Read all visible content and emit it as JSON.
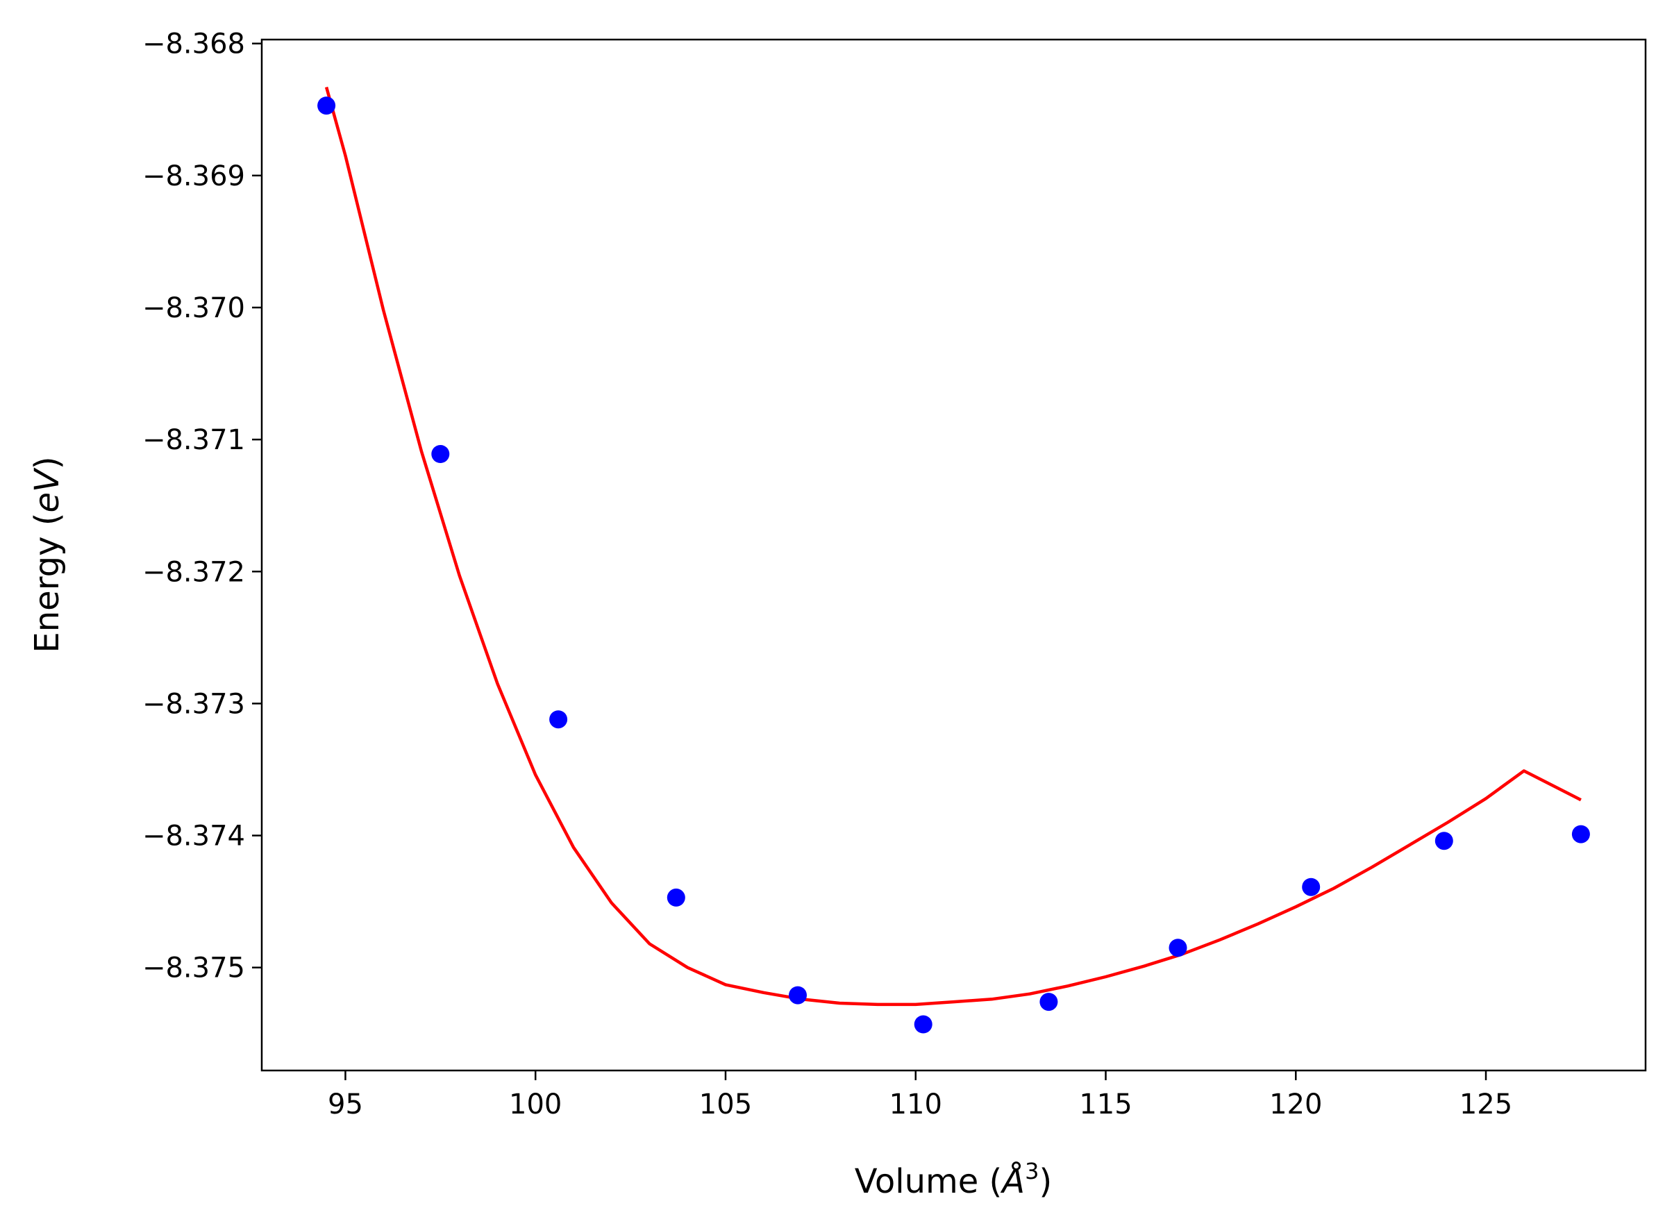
{
  "chart_data": {
    "type": "scatter",
    "title": "",
    "xlabel_parts": {
      "prefix": "Volume (",
      "unit_italic": "Å",
      "unit_sup": "3",
      "suffix": ")"
    },
    "ylabel_parts": {
      "prefix": "Energy (",
      "unit_italic": "eV",
      "suffix": ")"
    },
    "xlim": [
      92.8,
      129.2
    ],
    "ylim": [
      -8.37578,
      -8.36797
    ],
    "x_ticks": [
      95,
      100,
      105,
      110,
      115,
      120,
      125
    ],
    "x_tick_labels": [
      "95",
      "100",
      "105",
      "110",
      "115",
      "120",
      "125"
    ],
    "y_ticks": [
      -8.368,
      -8.369,
      -8.37,
      -8.371,
      -8.372,
      -8.373,
      -8.374,
      -8.375
    ],
    "y_tick_labels": [
      "−8.368",
      "−8.369",
      "−8.370",
      "−8.371",
      "−8.372",
      "−8.373",
      "−8.374",
      "−8.375"
    ],
    "grid": false,
    "series": [
      {
        "kind": "scatter",
        "color": "#0000ff",
        "x": [
          94.5,
          97.5,
          100.6,
          103.7,
          106.9,
          110.2,
          113.5,
          116.9,
          120.4,
          123.9,
          127.5
        ],
        "y": [
          -8.36847,
          -8.37111,
          -8.37312,
          -8.37447,
          -8.37521,
          -8.37543,
          -8.37526,
          -8.37485,
          -8.37439,
          -8.37404,
          -8.37399
        ]
      },
      {
        "kind": "line",
        "color": "#ff0000",
        "x": [
          94.5,
          95.0,
          96.0,
          97.0,
          98.0,
          99.0,
          100.0,
          101.0,
          102.0,
          103.0,
          104.0,
          105.0,
          106.0,
          107.0,
          108.0,
          109.0,
          110.0,
          111.0,
          112.0,
          113.0,
          114.0,
          115.0,
          116.0,
          117.0,
          118.0,
          119.0,
          120.0,
          121.0,
          122.0,
          123.0,
          124.0,
          125.0,
          126.0,
          127.5
        ],
        "y": [
          -8.36833,
          -8.36885,
          -8.37002,
          -8.37109,
          -8.37203,
          -8.37285,
          -8.37354,
          -8.37409,
          -8.37451,
          -8.37482,
          -8.375,
          -8.37513,
          -8.37519,
          -8.37524,
          -8.37527,
          -8.37528,
          -8.37528,
          -8.37526,
          -8.37524,
          -8.3752,
          -8.37514,
          -8.37507,
          -8.37499,
          -8.3749,
          -8.37479,
          -8.37467,
          -8.37454,
          -8.3744,
          -8.37424,
          -8.37407,
          -8.3739,
          -8.37372,
          -8.37351,
          -8.37373
        ]
      }
    ]
  }
}
